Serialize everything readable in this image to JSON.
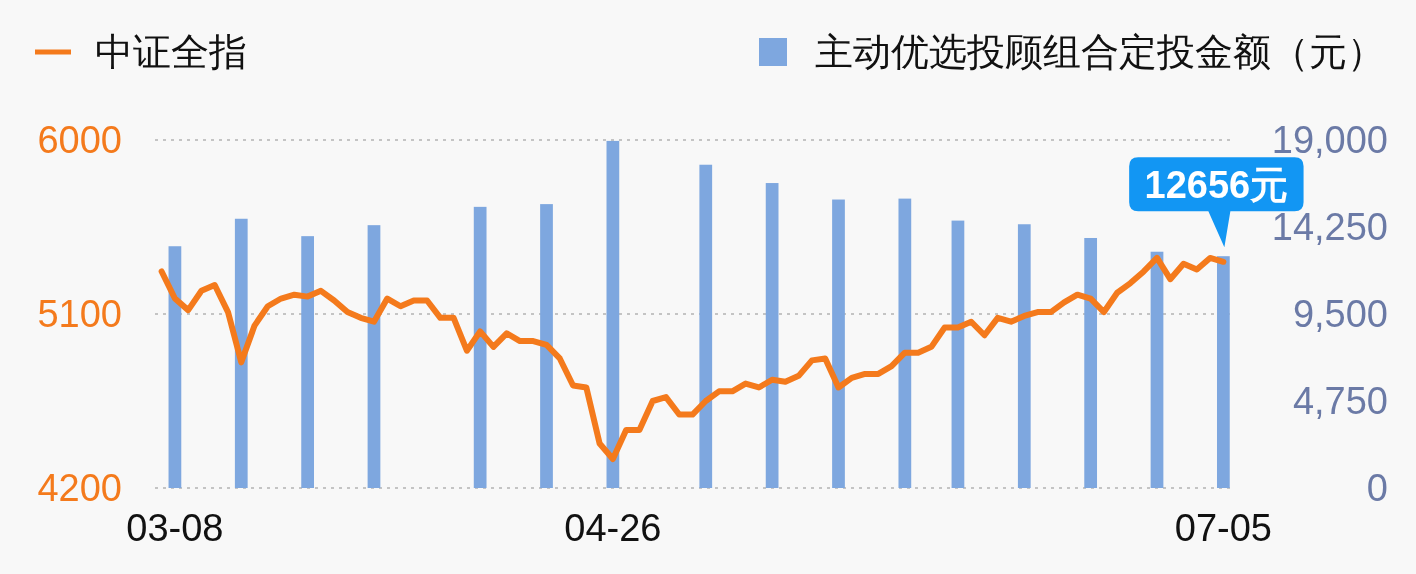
{
  "chart_data": {
    "type": "bar",
    "categories": [
      null,
      "03-08",
      null,
      null,
      null,
      null,
      null,
      null,
      null,
      null,
      null,
      null,
      null,
      null,
      null,
      null,
      null,
      null,
      null,
      null,
      null,
      null,
      null,
      null,
      null,
      null,
      null,
      null,
      null,
      null,
      null,
      null,
      null,
      null,
      "04-26",
      null,
      null,
      null,
      null,
      null,
      null,
      null,
      null,
      null,
      null,
      null,
      null,
      null,
      null,
      null,
      null,
      null,
      null,
      null,
      null,
      null,
      null,
      null,
      null,
      null,
      null,
      null,
      null,
      null,
      null,
      null,
      null,
      null,
      null,
      null,
      null,
      null,
      null,
      null,
      null,
      null,
      null,
      null,
      null,
      null,
      "07-05"
    ],
    "series": [
      {
        "name": "中证全指",
        "type": "line",
        "color": "#f47a1c",
        "values": [
          5320,
          5180,
          5120,
          5220,
          5250,
          5110,
          4850,
          5040,
          5140,
          5180,
          5200,
          5190,
          5220,
          5170,
          5110,
          5080,
          5060,
          5180,
          5140,
          5170,
          5170,
          5080,
          5080,
          4910,
          5010,
          4930,
          5000,
          4960,
          4960,
          4940,
          4870,
          4730,
          4720,
          4430,
          4350,
          4500,
          4500,
          4650,
          4670,
          4580,
          4580,
          4650,
          4700,
          4700,
          4740,
          4720,
          4760,
          4750,
          4780,
          4860,
          4870,
          4720,
          4770,
          4790,
          4790,
          4830,
          4900,
          4900,
          4930,
          5030,
          5030,
          5060,
          4990,
          5080,
          5060,
          5090,
          5110,
          5110,
          5160,
          5200,
          5180,
          5110,
          5210,
          5260,
          5320,
          5390,
          5280,
          5360,
          5330,
          5390,
          5370
        ]
      },
      {
        "name": "主动优选投顾组合定投金额（元）",
        "axis": "y2",
        "color": "#7ea7df",
        "values": [
          null,
          13200,
          null,
          null,
          null,
          null,
          14700,
          null,
          null,
          null,
          null,
          13750,
          null,
          null,
          null,
          null,
          14350,
          null,
          null,
          null,
          null,
          null,
          null,
          null,
          15350,
          null,
          null,
          null,
          null,
          15500,
          null,
          null,
          null,
          null,
          18950,
          null,
          null,
          null,
          null,
          null,
          null,
          17650,
          null,
          null,
          null,
          null,
          16650,
          null,
          null,
          null,
          null,
          15750,
          null,
          null,
          null,
          null,
          15800,
          null,
          null,
          null,
          14600,
          null,
          null,
          null,
          null,
          14400,
          null,
          null,
          null,
          null,
          13650,
          null,
          null,
          null,
          null,
          12900,
          null,
          null,
          null,
          null,
          12656
        ],
        "value_labels": [
          null,
          null,
          null,
          null,
          null,
          null,
          null,
          null,
          null,
          null,
          null,
          null,
          null,
          null,
          null,
          null,
          null,
          null,
          null,
          null,
          null,
          null,
          null,
          null,
          null,
          null,
          null,
          null,
          null,
          null,
          null,
          null,
          null,
          null,
          null,
          null,
          null,
          null,
          null,
          null,
          null,
          null,
          null,
          null,
          null,
          null,
          null,
          null,
          null,
          null,
          null,
          null,
          null,
          null,
          null,
          null,
          null,
          null,
          null,
          null,
          null,
          null,
          null,
          null,
          null,
          null,
          null,
          null,
          null,
          null,
          null,
          null,
          null,
          null,
          null,
          null,
          null,
          null,
          null,
          null,
          "12656元"
        ]
      }
    ],
    "ylim": [
      4200,
      6000
    ],
    "yticks": [
      4200,
      5100,
      6000
    ],
    "y2lim": [
      0,
      19000
    ],
    "y2ticks": [
      0,
      {
        "value": 4750,
        "label": "4,750"
      },
      {
        "value": 9500,
        "label": "9,500"
      },
      {
        "value": 14250,
        "label": "14,250"
      },
      {
        "value": 19000,
        "label": "19,000"
      }
    ],
    "grid": "y",
    "legend": "top"
  }
}
